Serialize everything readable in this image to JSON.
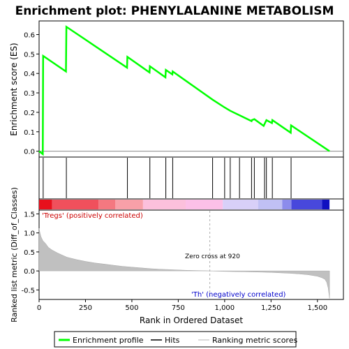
{
  "chart_data": {
    "type": "line",
    "title": "Enrichment plot: PHENYLALANINE METABOLISM",
    "colors": {
      "es_line": "#00ff00",
      "hits": "#000000",
      "metric_fill": "#c0c0c0",
      "zero_cross_line": "#b0b0b0",
      "pos_label": "#cc0000",
      "neg_label": "#0000cc"
    },
    "es_panel": {
      "ylabel": "Enrichment score (ES)",
      "ylim": [
        -0.03,
        0.67
      ],
      "yticks": [
        0.0,
        0.1,
        0.2,
        0.3,
        0.4,
        0.5,
        0.6
      ],
      "ytick_labels": [
        "0.0",
        "0.1",
        "0.2",
        "0.3",
        "0.4",
        "0.5",
        "0.6"
      ],
      "points": [
        [
          0,
          0.0
        ],
        [
          20,
          -0.015
        ],
        [
          22,
          0.49
        ],
        [
          145,
          0.41
        ],
        [
          147,
          0.64
        ],
        [
          474,
          0.43
        ],
        [
          476,
          0.485
        ],
        [
          595,
          0.405
        ],
        [
          597,
          0.437
        ],
        [
          681,
          0.38
        ],
        [
          683,
          0.418
        ],
        [
          718,
          0.395
        ],
        [
          720,
          0.41
        ],
        [
          935,
          0.265
        ],
        [
          1000,
          0.225
        ],
        [
          1030,
          0.208
        ],
        [
          1080,
          0.185
        ],
        [
          1145,
          0.155
        ],
        [
          1147,
          0.16
        ],
        [
          1160,
          0.165
        ],
        [
          1210,
          0.13
        ],
        [
          1225,
          0.16
        ],
        [
          1255,
          0.145
        ],
        [
          1257,
          0.16
        ],
        [
          1356,
          0.095
        ],
        [
          1358,
          0.133
        ],
        [
          1565,
          0.0
        ]
      ]
    },
    "hits": [
      22,
      147,
      476,
      597,
      683,
      720,
      935,
      1000,
      1030,
      1080,
      1145,
      1160,
      1215,
      1225,
      1257,
      1358
    ],
    "ranking_bar": {
      "segments": [
        {
          "start": 0,
          "end": 70,
          "color": "#e8101c"
        },
        {
          "start": 70,
          "end": 320,
          "color": "#f0505c"
        },
        {
          "start": 320,
          "end": 410,
          "color": "#f47880"
        },
        {
          "start": 410,
          "end": 560,
          "color": "#f8a0a8"
        },
        {
          "start": 560,
          "end": 790,
          "color": "#fcc0dc"
        },
        {
          "start": 790,
          "end": 990,
          "color": "#fcc0e8"
        },
        {
          "start": 990,
          "end": 1180,
          "color": "#d8d0f8"
        },
        {
          "start": 1180,
          "end": 1310,
          "color": "#c0c0f4"
        },
        {
          "start": 1310,
          "end": 1360,
          "color": "#8c8cec"
        },
        {
          "start": 1360,
          "end": 1525,
          "color": "#4848dc"
        },
        {
          "start": 1525,
          "end": 1565,
          "color": "#1010c0"
        }
      ]
    },
    "metric_panel": {
      "ylabel": "Ranked list metric (Diff_of_Classes)",
      "ylim": [
        -0.75,
        1.6
      ],
      "yticks": [
        -0.5,
        0.0,
        0.5,
        1.0,
        1.5
      ],
      "ytick_labels": [
        "-0.5",
        "0.0",
        "0.5",
        "1.0",
        "1.5"
      ],
      "points": [
        [
          0,
          1.12
        ],
        [
          5,
          1.0
        ],
        [
          10,
          0.9
        ],
        [
          20,
          0.8
        ],
        [
          35,
          0.72
        ],
        [
          50,
          0.62
        ],
        [
          70,
          0.55
        ],
        [
          100,
          0.47
        ],
        [
          150,
          0.36
        ],
        [
          200,
          0.3
        ],
        [
          250,
          0.25
        ],
        [
          300,
          0.21
        ],
        [
          350,
          0.18
        ],
        [
          400,
          0.15
        ],
        [
          450,
          0.12
        ],
        [
          500,
          0.1
        ],
        [
          550,
          0.08
        ],
        [
          600,
          0.06
        ],
        [
          650,
          0.045
        ],
        [
          700,
          0.035
        ],
        [
          750,
          0.025
        ],
        [
          800,
          0.016
        ],
        [
          850,
          0.01
        ],
        [
          900,
          0.004
        ],
        [
          920,
          0.0
        ],
        [
          950,
          -0.005
        ],
        [
          1000,
          -0.012
        ],
        [
          1050,
          -0.018
        ],
        [
          1100,
          -0.022
        ],
        [
          1150,
          -0.026
        ],
        [
          1200,
          -0.032
        ],
        [
          1250,
          -0.04
        ],
        [
          1300,
          -0.05
        ],
        [
          1350,
          -0.062
        ],
        [
          1400,
          -0.078
        ],
        [
          1450,
          -0.1
        ],
        [
          1500,
          -0.14
        ],
        [
          1525,
          -0.18
        ],
        [
          1540,
          -0.22
        ],
        [
          1550,
          -0.3
        ],
        [
          1558,
          -0.45
        ],
        [
          1565,
          -0.72
        ]
      ],
      "zero_cross_x": 920,
      "zero_cross_label": "Zero cross at 920",
      "pos_label": "'Tregs' (positively correlated)",
      "neg_label": "'Th' (negatively correlated)"
    },
    "xlabel": "Rank in Ordered Dataset",
    "xlim": [
      0,
      1640
    ],
    "xticks": [
      0,
      250,
      500,
      750,
      1000,
      1250,
      1500
    ],
    "xtick_labels": [
      "0",
      "250",
      "500",
      "750",
      "1,000",
      "1,250",
      "1,500"
    ],
    "legend": {
      "placement": "bottom",
      "items": [
        {
          "label": "Enrichment profile",
          "kind": "line",
          "color": "#00ff00"
        },
        {
          "label": "Hits",
          "kind": "line",
          "color": "#000000"
        },
        {
          "label": "Ranking metric scores",
          "kind": "line",
          "color": "#c0c0c0"
        }
      ]
    }
  }
}
